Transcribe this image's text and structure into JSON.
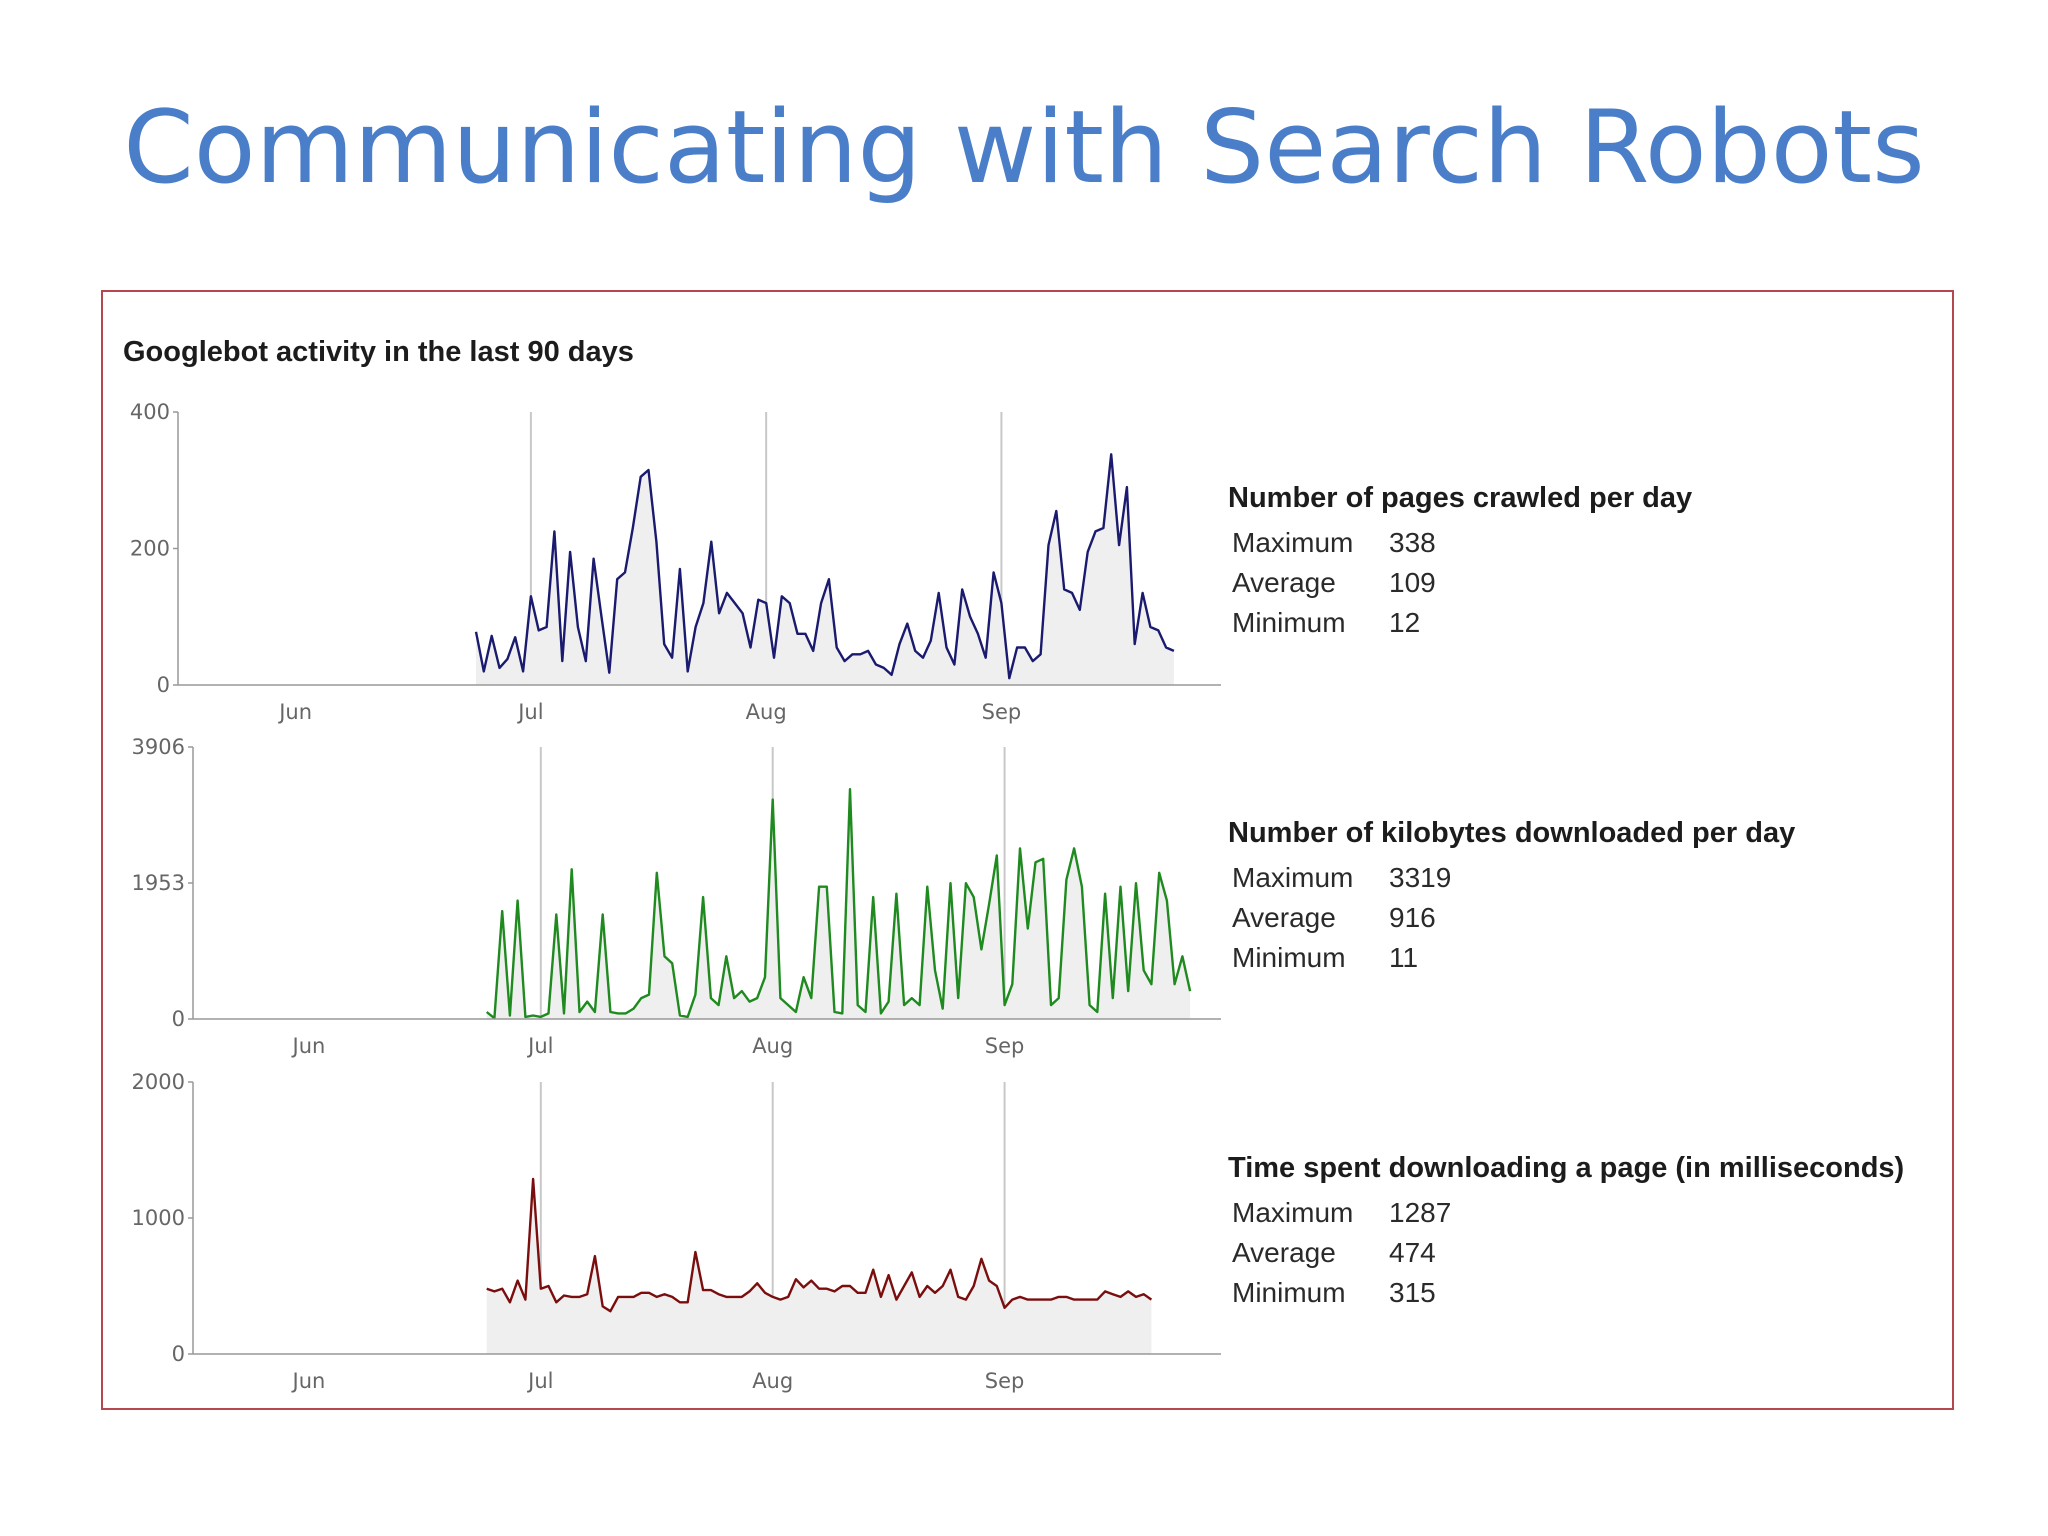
{
  "slide": {
    "title": "Communicating with Search Robots",
    "title_color": "#4a7ec8",
    "panel_border_color": "#b5484f"
  },
  "panel": {
    "title": "Googlebot activity in the last 90 days"
  },
  "chart_data": [
    {
      "type": "area",
      "title": "Number of pages crawled per day",
      "color": "#1a1a6e",
      "fill": "#efefef",
      "ylim": [
        0,
        400
      ],
      "yticks": [
        "400",
        "200",
        "0"
      ],
      "yticks_values": [
        400,
        200,
        0
      ],
      "x_range": [
        "2008-05-17",
        "2008-09-27"
      ],
      "month_labels": [
        {
          "label": "Jun",
          "date": "2008-06-01"
        },
        {
          "label": "Jul",
          "date": "2008-07-01"
        },
        {
          "label": "Aug",
          "date": "2008-07-31"
        },
        {
          "label": "Sep",
          "date": "2008-08-30"
        }
      ],
      "x_start": "2008-06-24",
      "values": [
        78,
        20,
        72,
        25,
        38,
        70,
        20,
        130,
        80,
        85,
        225,
        35,
        195,
        85,
        35,
        185,
        100,
        18,
        155,
        165,
        230,
        305,
        315,
        210,
        60,
        40,
        170,
        20,
        85,
        120,
        210,
        105,
        135,
        120,
        105,
        55,
        125,
        120,
        40,
        130,
        120,
        75,
        75,
        50,
        120,
        155,
        55,
        35,
        45,
        45,
        50,
        30,
        25,
        15,
        60,
        90,
        50,
        40,
        65,
        135,
        55,
        30,
        140,
        100,
        75,
        40,
        165,
        120,
        10,
        55,
        55,
        35,
        45,
        205,
        255,
        140,
        135,
        110,
        195,
        225,
        230,
        338,
        205,
        290,
        60,
        135,
        85,
        80,
        55,
        50
      ],
      "stats": {
        "title": "Number of pages crawled per day",
        "rows": [
          {
            "label": "Maximum",
            "value": "338"
          },
          {
            "label": "Average",
            "value": "109"
          },
          {
            "label": "Minimum",
            "value": "12"
          }
        ]
      }
    },
    {
      "type": "area",
      "title": "Number of kilobytes downloaded per day",
      "color": "#1f8a1f",
      "fill": "#efefef",
      "ylim": [
        0,
        3906
      ],
      "yticks": [
        "3906",
        "1953",
        "0"
      ],
      "yticks_values": [
        3906,
        1953,
        0
      ],
      "x_range": [
        "2008-05-17",
        "2008-09-27"
      ],
      "month_labels": [
        {
          "label": "Jun",
          "date": "2008-06-01"
        },
        {
          "label": "Jul",
          "date": "2008-07-01"
        },
        {
          "label": "Aug",
          "date": "2008-07-31"
        },
        {
          "label": "Sep",
          "date": "2008-08-30"
        }
      ],
      "x_start": "2008-06-24",
      "values": [
        100,
        11,
        1550,
        50,
        1700,
        30,
        50,
        30,
        80,
        1500,
        80,
        2150,
        100,
        250,
        100,
        1500,
        100,
        80,
        80,
        150,
        300,
        350,
        2100,
        900,
        800,
        50,
        30,
        350,
        1750,
        300,
        200,
        900,
        300,
        400,
        250,
        300,
        600,
        3150,
        300,
        200,
        100,
        600,
        300,
        1900,
        1900,
        100,
        80,
        3300,
        200,
        100,
        1750,
        80,
        250,
        1800,
        200,
        300,
        200,
        1900,
        700,
        150,
        1950,
        300,
        1950,
        1750,
        1000,
        1650,
        2350,
        200,
        500,
        2450,
        1300,
        2250,
        2300,
        200,
        300,
        2000,
        2450,
        1900,
        200,
        100,
        1800,
        300,
        1900,
        400,
        1950,
        700,
        500,
        2100,
        1700,
        500,
        900,
        400
      ],
      "stats": {
        "title": "Number of kilobytes downloaded per day",
        "rows": [
          {
            "label": "Maximum",
            "value": "3319"
          },
          {
            "label": "Average",
            "value": "916"
          },
          {
            "label": "Minimum",
            "value": "11"
          }
        ]
      }
    },
    {
      "type": "area",
      "title": "Time spent downloading a page (in milliseconds)",
      "color": "#7a0e0e",
      "fill": "#efefef",
      "ylim": [
        0,
        2000
      ],
      "yticks": [
        "2000",
        "1000",
        "0"
      ],
      "yticks_values": [
        2000,
        1000,
        0
      ],
      "x_range": [
        "2008-05-17",
        "2008-09-27"
      ],
      "month_labels": [
        {
          "label": "Jun",
          "date": "2008-06-01"
        },
        {
          "label": "Jul",
          "date": "2008-07-01"
        },
        {
          "label": "Aug",
          "date": "2008-07-31"
        },
        {
          "label": "Sep",
          "date": "2008-08-30"
        }
      ],
      "x_start": "2008-06-24",
      "values": [
        480,
        460,
        480,
        380,
        540,
        400,
        1287,
        480,
        500,
        380,
        430,
        420,
        420,
        440,
        720,
        350,
        315,
        420,
        420,
        420,
        450,
        450,
        420,
        440,
        420,
        380,
        380,
        750,
        470,
        470,
        440,
        420,
        420,
        420,
        460,
        520,
        450,
        420,
        400,
        420,
        550,
        490,
        540,
        480,
        480,
        460,
        500,
        500,
        450,
        450,
        620,
        420,
        580,
        400,
        500,
        600,
        420,
        500,
        450,
        500,
        620,
        420,
        400,
        500,
        700,
        540,
        500,
        340,
        400,
        420,
        400,
        400,
        400,
        400,
        420,
        420,
        400,
        400,
        400,
        400,
        460,
        440,
        420,
        460,
        420,
        440,
        400
      ],
      "stats": {
        "title": "Time spent downloading a page (in milliseconds)",
        "rows": [
          {
            "label": "Maximum",
            "value": "1287"
          },
          {
            "label": "Average",
            "value": "474"
          },
          {
            "label": "Minimum",
            "value": "315"
          }
        ]
      }
    }
  ]
}
